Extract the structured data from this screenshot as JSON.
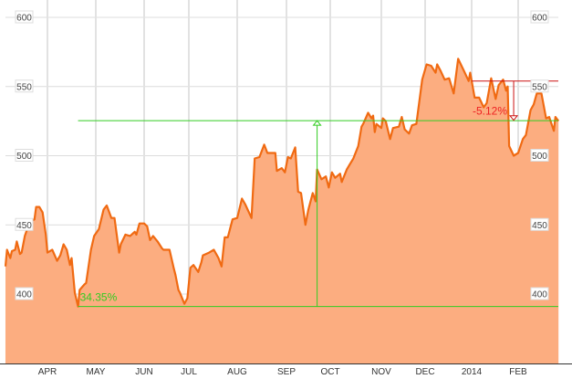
{
  "chart_data": {
    "type": "area",
    "title": "",
    "xlabel": "",
    "ylabel": "",
    "ylim": [
      373,
      612
    ],
    "y_ticks": [
      "400",
      "450",
      "500",
      "550",
      "600"
    ],
    "x_ticks": [
      {
        "date": "2013-04-01",
        "label": "APR"
      },
      {
        "date": "2013-05-01",
        "label": "MAY"
      },
      {
        "date": "2013-06-01",
        "label": "JUN"
      },
      {
        "date": "2013-07-01",
        "label": "JUL"
      },
      {
        "date": "2013-08-01",
        "label": "AUG"
      },
      {
        "date": "2013-09-01",
        "label": "SEP"
      },
      {
        "date": "2013-10-01",
        "label": "OCT"
      },
      {
        "date": "2013-11-01",
        "label": "NOV"
      },
      {
        "date": "2013-12-01",
        "label": "DEC"
      },
      {
        "date": "2014-01-01",
        "label": "2014"
      },
      {
        "date": "2014-02-01",
        "label": "FEB"
      }
    ],
    "grid": true,
    "colors": {
      "line": "#f06a12",
      "fill": "#fcad80",
      "gain": "#33cc22",
      "loss": "#cc1111",
      "loss_text": "#ee2222"
    },
    "series": [
      {
        "values": [
          [
            "2013-03-06",
            420
          ],
          [
            "2013-03-07",
            432
          ],
          [
            "2013-03-09",
            426
          ],
          [
            "2013-03-10",
            431
          ],
          [
            "2013-03-12",
            432
          ],
          [
            "2013-03-13",
            438
          ],
          [
            "2013-03-15",
            429
          ],
          [
            "2013-03-16",
            430
          ],
          [
            "2013-03-18",
            442
          ],
          [
            "2013-03-21",
            452
          ],
          [
            "2013-03-24",
            454
          ],
          [
            "2013-03-25",
            463
          ],
          [
            "2013-03-27",
            463
          ],
          [
            "2013-03-29",
            459
          ],
          [
            "2013-03-31",
            443
          ],
          [
            "2013-04-01",
            430
          ],
          [
            "2013-04-04",
            432
          ],
          [
            "2013-04-07",
            424
          ],
          [
            "2013-04-09",
            428
          ],
          [
            "2013-04-11",
            436
          ],
          [
            "2013-04-13",
            432
          ],
          [
            "2013-04-15",
            421
          ],
          [
            "2013-04-16",
            426
          ],
          [
            "2013-04-18",
            401
          ],
          [
            "2013-04-20",
            391
          ],
          [
            "2013-04-21",
            403
          ],
          [
            "2013-04-24",
            407
          ],
          [
            "2013-04-25",
            408
          ],
          [
            "2013-04-28",
            432
          ],
          [
            "2013-04-30",
            442
          ],
          [
            "2013-05-03",
            447
          ],
          [
            "2013-05-06",
            461
          ],
          [
            "2013-05-08",
            464
          ],
          [
            "2013-05-11",
            455
          ],
          [
            "2013-05-13",
            455
          ],
          [
            "2013-05-16",
            430
          ],
          [
            "2013-05-17",
            436
          ],
          [
            "2013-05-20",
            443
          ],
          [
            "2013-05-23",
            442
          ],
          [
            "2013-05-26",
            445
          ],
          [
            "2013-05-27",
            443
          ],
          [
            "2013-05-29",
            451
          ],
          [
            "2013-06-01",
            451
          ],
          [
            "2013-06-03",
            449
          ],
          [
            "2013-06-05",
            439
          ],
          [
            "2013-06-07",
            442
          ],
          [
            "2013-06-10",
            438
          ],
          [
            "2013-06-13",
            433
          ],
          [
            "2013-06-14",
            432
          ],
          [
            "2013-06-18",
            432
          ],
          [
            "2013-06-21",
            418
          ],
          [
            "2013-06-22",
            414
          ],
          [
            "2013-06-24",
            403
          ],
          [
            "2013-06-25",
            401
          ],
          [
            "2013-06-28",
            393
          ],
          [
            "2013-06-30",
            397
          ],
          [
            "2013-07-02",
            419
          ],
          [
            "2013-07-04",
            421
          ],
          [
            "2013-07-07",
            416
          ],
          [
            "2013-07-09",
            423
          ],
          [
            "2013-07-10",
            428
          ],
          [
            "2013-07-14",
            430
          ],
          [
            "2013-07-17",
            432
          ],
          [
            "2013-07-20",
            426
          ],
          [
            "2013-07-22",
            420
          ],
          [
            "2013-07-24",
            441
          ],
          [
            "2013-07-26",
            441
          ],
          [
            "2013-07-29",
            454
          ],
          [
            "2013-08-01",
            455
          ],
          [
            "2013-08-04",
            469
          ],
          [
            "2013-08-06",
            465
          ],
          [
            "2013-08-10",
            455
          ],
          [
            "2013-08-12",
            498
          ],
          [
            "2013-08-15",
            499
          ],
          [
            "2013-08-18",
            508
          ],
          [
            "2013-08-20",
            502
          ],
          [
            "2013-08-23",
            502
          ],
          [
            "2013-08-25",
            502
          ],
          [
            "2013-08-26",
            489
          ],
          [
            "2013-08-29",
            491
          ],
          [
            "2013-08-31",
            488
          ],
          [
            "2013-09-02",
            499
          ],
          [
            "2013-09-04",
            498
          ],
          [
            "2013-09-07",
            506
          ],
          [
            "2013-09-09",
            474
          ],
          [
            "2013-09-11",
            473
          ],
          [
            "2013-09-14",
            450
          ],
          [
            "2013-09-16",
            461
          ],
          [
            "2013-09-19",
            473
          ],
          [
            "2013-09-21",
            467
          ],
          [
            "2013-09-22",
            490
          ],
          [
            "2013-09-25",
            483
          ],
          [
            "2013-09-28",
            485
          ],
          [
            "2013-09-30",
            477
          ],
          [
            "2013-10-02",
            488
          ],
          [
            "2013-10-04",
            484
          ],
          [
            "2013-10-07",
            487
          ],
          [
            "2013-10-08",
            481
          ],
          [
            "2013-10-11",
            490
          ],
          [
            "2013-10-15",
            498
          ],
          [
            "2013-10-18",
            507
          ],
          [
            "2013-10-20",
            521
          ],
          [
            "2013-10-21",
            523
          ],
          [
            "2013-10-24",
            531
          ],
          [
            "2013-10-26",
            527
          ],
          [
            "2013-10-27",
            529
          ],
          [
            "2013-10-28",
            517
          ],
          [
            "2013-10-29",
            523
          ],
          [
            "2013-11-01",
            520
          ],
          [
            "2013-11-02",
            527
          ],
          [
            "2013-11-04",
            525
          ],
          [
            "2013-11-07",
            512
          ],
          [
            "2013-11-09",
            520
          ],
          [
            "2013-11-13",
            521
          ],
          [
            "2013-11-15",
            528
          ],
          [
            "2013-11-17",
            519
          ],
          [
            "2013-11-20",
            516
          ],
          [
            "2013-11-22",
            522
          ],
          [
            "2013-11-25",
            523
          ],
          [
            "2013-11-29",
            555
          ],
          [
            "2013-12-02",
            566
          ],
          [
            "2013-12-05",
            565
          ],
          [
            "2013-12-08",
            560
          ],
          [
            "2013-12-09",
            566
          ],
          [
            "2013-12-11",
            562
          ],
          [
            "2013-12-14",
            555
          ],
          [
            "2013-12-17",
            556
          ],
          [
            "2013-12-20",
            545
          ],
          [
            "2013-12-23",
            570
          ],
          [
            "2013-12-27",
            561
          ],
          [
            "2013-12-30",
            554
          ],
          [
            "2013-12-31",
            560
          ],
          [
            "2014-01-03",
            542
          ],
          [
            "2014-01-06",
            542
          ],
          [
            "2014-01-09",
            535
          ],
          [
            "2014-01-11",
            538
          ],
          [
            "2014-01-14",
            556
          ],
          [
            "2014-01-17",
            541
          ],
          [
            "2014-01-19",
            551
          ],
          [
            "2014-01-22",
            555
          ],
          [
            "2014-01-24",
            547
          ],
          [
            "2014-01-25",
            550
          ],
          [
            "2014-01-26",
            507
          ],
          [
            "2014-01-29",
            500
          ],
          [
            "2014-02-01",
            502
          ],
          [
            "2014-02-04",
            512
          ],
          [
            "2014-02-06",
            515
          ],
          [
            "2014-02-09",
            533
          ],
          [
            "2014-02-11",
            537
          ],
          [
            "2014-02-13",
            545
          ],
          [
            "2014-02-16",
            545
          ],
          [
            "2014-02-19",
            527
          ],
          [
            "2014-02-21",
            528
          ],
          [
            "2014-02-24",
            518
          ],
          [
            "2014-02-25",
            528
          ],
          [
            "2014-02-27",
            525
          ]
        ]
      }
    ],
    "annotations": [
      {
        "kind": "gain",
        "label": "34.35%",
        "from_date": "2013-04-20",
        "from_value": 391,
        "to_value": 525.3,
        "arrow_date": "2013-09-22"
      },
      {
        "kind": "loss",
        "label": "-5.12%",
        "from_date": "2014-01-01",
        "from_value": 554,
        "to_value": 525.6,
        "arrow_date": "2014-01-29"
      }
    ]
  }
}
